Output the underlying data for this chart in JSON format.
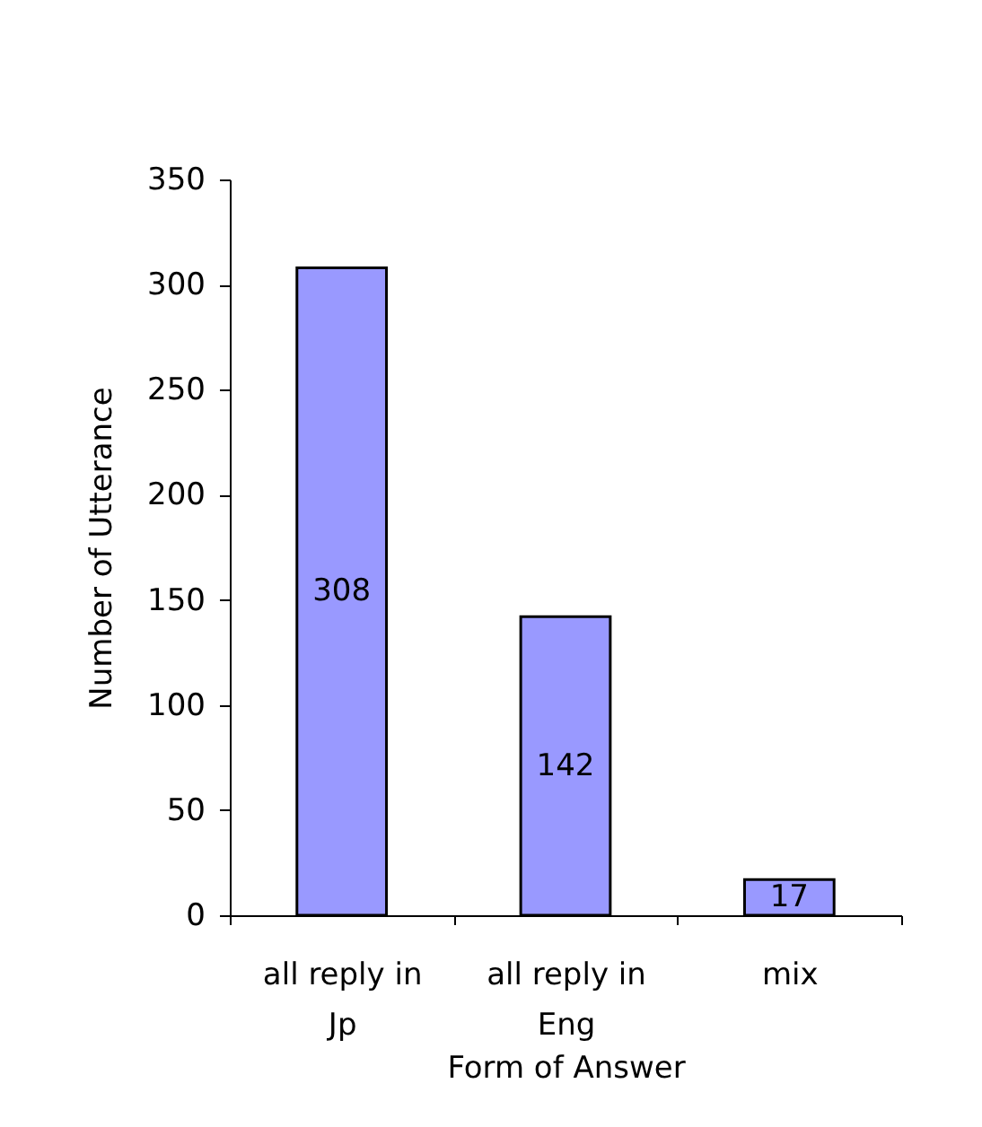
{
  "chart_data": {
    "type": "bar",
    "xlabel": "Form of Answer",
    "ylabel": "Number of Utterance",
    "categories": [
      "all reply in Jp",
      "all reply in Eng",
      "mix"
    ],
    "values": [
      308,
      142,
      17
    ],
    "color": "#9999ff",
    "ylim": [
      0,
      350
    ],
    "yticks": [
      0,
      50,
      100,
      150,
      200,
      250,
      300,
      350
    ],
    "data_labels": true,
    "grid": false
  }
}
